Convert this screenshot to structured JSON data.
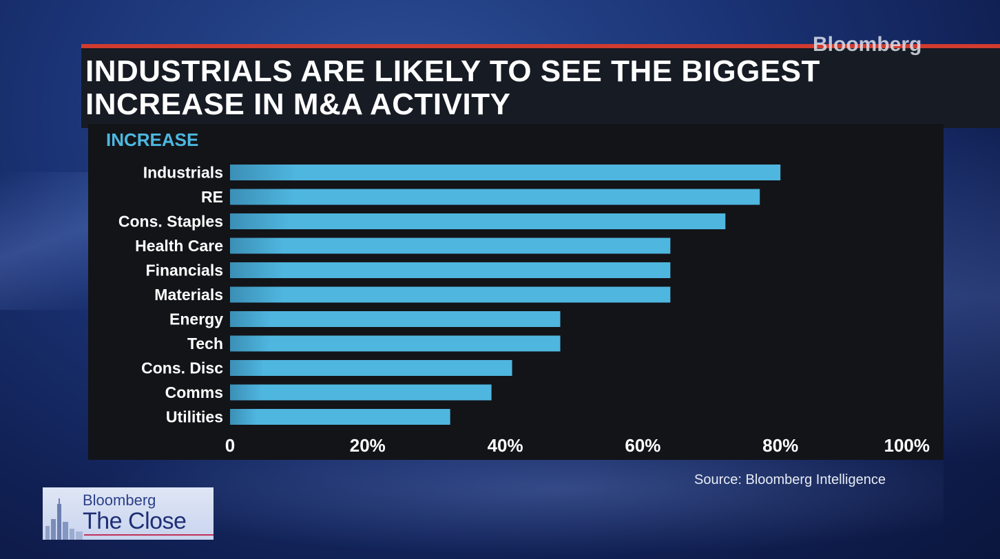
{
  "brand": "Bloomberg",
  "title": "INDUSTRIALS ARE LIKELY TO SEE THE BIGGEST INCREASE IN M&A ACTIVITY",
  "source": "Source: Bloomberg Intelligence",
  "show_logo": {
    "network": "Bloomberg",
    "show": "The Close"
  },
  "colors": {
    "bar": "#4fb6df",
    "bar_left": "#3b8fb6",
    "header": "#4db8e0",
    "accent": "#d23b2f",
    "panel": "#131418"
  },
  "chart_data": {
    "type": "bar",
    "orientation": "horizontal",
    "title": "INDUSTRIALS ARE LIKELY TO SEE THE BIGGEST INCREASE IN M&A ACTIVITY",
    "series_label": "INCREASE",
    "categories": [
      "Industrials",
      "RE",
      "Cons. Staples",
      "Health Care",
      "Financials",
      "Materials",
      "Energy",
      "Tech",
      "Cons. Disc",
      "Comms",
      "Utilities"
    ],
    "values": [
      80,
      77,
      72,
      64,
      64,
      64,
      48,
      48,
      41,
      38,
      32
    ],
    "xlim": [
      0,
      100
    ],
    "xticks": [
      0,
      20,
      40,
      60,
      80,
      100
    ],
    "xtick_labels": [
      "0",
      "20%",
      "40%",
      "60%",
      "80%",
      "100%"
    ],
    "unit": "%",
    "grid": false,
    "source": "Source: Bloomberg Intelligence"
  }
}
